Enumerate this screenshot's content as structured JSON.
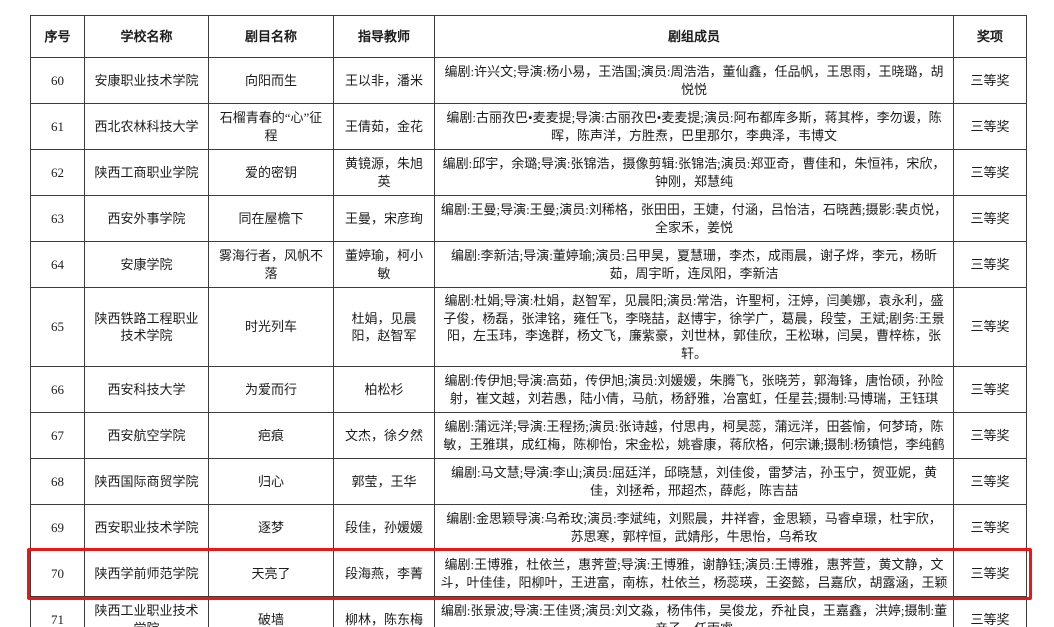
{
  "table": {
    "headers": [
      "序号",
      "学校名称",
      "剧目名称",
      "指导教师",
      "剧组成员",
      "奖项"
    ],
    "rows": [
      {
        "no": "60",
        "school": "安康职业技术学院",
        "play": "向阳而生",
        "teachers": "王以非，潘米",
        "members": "编剧:许兴文;导演:杨小易，王浩国;演员:周浩浩，董仙鑫，任品帆，王思雨，王晓璐，胡悦悦",
        "award": "三等奖"
      },
      {
        "no": "61",
        "school": "西北农林科技大学",
        "play": "石榴青春的“心”征程",
        "teachers": "王倩茹，金花",
        "members": "编剧:古丽孜巴•麦麦提;导演:古丽孜巴•麦麦提;演员:阿布都库多斯，蒋其桦，李勿谖，陈晖，陈声洋，方胜焘，巴里那尔，李典泽，韦博文",
        "award": "三等奖"
      },
      {
        "no": "62",
        "school": "陕西工商职业学院",
        "play": "爱的密钥",
        "teachers": "黄镜源，朱旭英",
        "members": "编剧:邱宇，余璐;导演:张锦浩，摄像剪辑:张锦浩;演员:郑亚奇，曹佳和，朱恒祎，宋欣，钟刚，郑慧纯",
        "award": "三等奖"
      },
      {
        "no": "63",
        "school": "西安外事学院",
        "play": "同在屋檐下",
        "teachers": "王曼，宋彦珣",
        "members": "编剧:王曼;导演:王曼;演员:刘稀格，张田田，王婕，付涵，吕怡洁，石晓茜;摄影:裴贞悦，全家禾，姜悦",
        "award": "三等奖"
      },
      {
        "no": "64",
        "school": "安康学院",
        "play": "雾海行者，风帆不落",
        "teachers": "董婷瑜，柯小敏",
        "members": "编剧:李新洁;导演:董婷瑜;演员:吕甲昊，夏慧珊，李杰，成雨晨，谢子烨，李元，杨昕茹，周宇昕，连凤阳，李新洁",
        "award": "三等奖"
      },
      {
        "no": "65",
        "school": "陕西铁路工程职业技术学院",
        "play": "时光列车",
        "teachers": "杜娟，见晨阳，赵智军",
        "members": "编剧:杜娟;导演:杜娟，赵智军，见晨阳;演员:常浩，许聖柯，汪婷，闫美娜，袁永利，盛子俊，杨磊，张津铭，雍任飞，李晓喆，赵博宇，徐学广，葛晨，段莹，王斌;剧务:王景阳，左玉玮，李逸群，杨文飞，廉紫豪，刘世林，郭佳欣，王松琳，闫昊，曹梓栋，张轩。",
        "award": "三等奖"
      },
      {
        "no": "66",
        "school": "西安科技大学",
        "play": "为爱而行",
        "teachers": "柏松杉",
        "members": "编剧:传伊旭;导演:高茹，传伊旭;演员:刘媛媛，朱腾飞，张晓芳，郭海锋，唐怡硕，孙险射，崔文越，刘若愚，陆小倩，马航，杨舒雅，冶富虹，任星芸;摄制:马博瑞，王钰琪",
        "award": "三等奖"
      },
      {
        "no": "67",
        "school": "西安航空学院",
        "play": "疤痕",
        "teachers": "文杰，徐夕然",
        "members": "编剧:蒲远洋;导演:王程扬;演员:张诗越，付思冉，柯昊蕊，蒲远洋，田荟愉，何梦琦，陈敏，王雅琪，成红梅，陈柳怡，宋金松，姚睿康，蒋欣格，何宗谦;摄制:杨镇恺，李纯鹤",
        "award": "三等奖"
      },
      {
        "no": "68",
        "school": "陕西国际商贸学院",
        "play": "归心",
        "teachers": "郭莹，王华",
        "members": "编剧:马文慧;导演:李山;演员:屈廷洋，邱晓慧，刘佳俊，雷梦洁，孙玉宁，贺亚妮，黄佳，刘拯希，邢超杰，薛彪，陈吉喆",
        "award": "三等奖"
      },
      {
        "no": "69",
        "school": "西安职业技术学院",
        "play": "逐梦",
        "teachers": "段佳，孙媛媛",
        "members": "编剧:金思颖导演:乌希玫;演员:李斌纯，刘熙晨，井祥睿，金思颖，马睿卓璟，杜宇欣，苏思寒，郭梓恒，武婧彤，牛思怡，乌希玫",
        "award": "三等奖"
      },
      {
        "no": "70",
        "school": "陕西学前师范学院",
        "play": "天亮了",
        "teachers": "段海燕，李菁",
        "members": "编剧:王博雅，杜依兰，惠荠萱;导演:王博雅，谢静钰;演员:王博雅，惠荠萱，黄文静，文斗，叶佳佳，阳柳叶，王进富，南栋，杜依兰，杨蕊瑛，王姿懿，吕嘉欣，胡露涵，王颖",
        "award": "三等奖"
      },
      {
        "no": "71",
        "school": "陕西工业职业技术学院",
        "play": "破墙",
        "teachers": "柳林，陈东梅",
        "members": "编剧:张景波;导演:王佳贤;演员:刘文淼，杨伟伟，吴俊龙，乔祉良，王嘉鑫，洪婷;摄制:董亲子，任雨睿",
        "award": "三等奖"
      }
    ]
  },
  "highlight": {
    "row_no": "70",
    "color": "#f01414"
  }
}
